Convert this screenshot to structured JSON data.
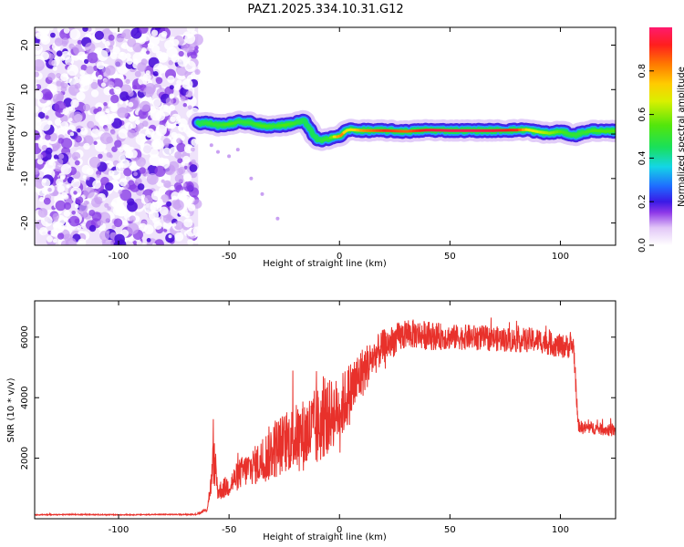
{
  "title": "PAZ1.2025.334.10.31.G12",
  "chart_data": [
    {
      "type": "heatmap",
      "name": "spectrogram",
      "xlabel": "Height of straight line (km)",
      "ylabel": "Frequency (Hz)",
      "xlim": [
        -138,
        125
      ],
      "ylim": [
        -25,
        24
      ],
      "x_ticks": [
        -100,
        -50,
        0,
        50,
        100
      ],
      "y_ticks": [
        -20,
        -10,
        0,
        10,
        20
      ],
      "noise_region_x": [
        -138,
        -64
      ],
      "ridge": {
        "x": [
          -64,
          -60,
          -55,
          -50,
          -45,
          -40,
          -35,
          -30,
          -25,
          -20,
          -16,
          -14,
          -12,
          -10,
          -8,
          -5,
          -3,
          0,
          3,
          5,
          10,
          20,
          30,
          40,
          50,
          60,
          70,
          80,
          85,
          90,
          95,
          100,
          103,
          106,
          110,
          115,
          120,
          125
        ],
        "y": [
          2.5,
          2.5,
          2.0,
          2.2,
          2.8,
          2.5,
          1.8,
          1.8,
          2.0,
          2.5,
          3.0,
          1.5,
          0.0,
          -1.2,
          -1.5,
          -1.0,
          -0.6,
          -0.6,
          0.8,
          1.0,
          0.8,
          0.8,
          0.6,
          0.9,
          0.8,
          0.8,
          0.8,
          0.9,
          1.0,
          0.5,
          0.2,
          0.6,
          0.2,
          -0.3,
          0.3,
          0.8,
          0.6,
          0.7
        ],
        "amp": [
          0.45,
          0.5,
          0.5,
          0.55,
          0.5,
          0.5,
          0.55,
          0.5,
          0.55,
          0.5,
          0.45,
          0.45,
          0.45,
          0.45,
          0.5,
          0.5,
          0.65,
          0.85,
          0.65,
          0.7,
          0.8,
          0.9,
          0.85,
          0.95,
          0.97,
          0.97,
          0.95,
          0.9,
          0.7,
          0.65,
          0.6,
          0.55,
          0.5,
          0.5,
          0.5,
          0.55,
          0.55,
          0.55
        ]
      },
      "colorbar": {
        "label": "Normalized spectral amplitude",
        "range": [
          0,
          1
        ],
        "ticks": [
          "0.0",
          "0.2",
          "0.4",
          "0.6",
          "0.8"
        ],
        "tick_values": [
          0.0,
          0.2,
          0.4,
          0.6,
          0.8
        ]
      }
    },
    {
      "type": "line",
      "name": "snr",
      "xlabel": "Height of straight line (km)",
      "ylabel": "SNR (10 * v/v)",
      "xlim": [
        -138,
        125
      ],
      "ylim": [
        0,
        7200
      ],
      "x_ticks": [
        -100,
        -50,
        0,
        50,
        100
      ],
      "y_ticks": [
        2000,
        4000,
        6000
      ],
      "series": [
        {
          "name": "SNR",
          "color": "#e8312b",
          "x": [
            -138,
            -120,
            -100,
            -80,
            -65,
            -60,
            -58,
            -57,
            -55,
            -50,
            -45,
            -40,
            -35,
            -30,
            -25,
            -20,
            -15,
            -10,
            -5,
            0,
            5,
            10,
            15,
            20,
            25,
            30,
            35,
            40,
            50,
            60,
            70,
            80,
            90,
            100,
            106,
            108,
            110,
            115,
            120,
            125
          ],
          "y": [
            130,
            140,
            130,
            140,
            140,
            300,
            1200,
            2000,
            900,
            1100,
            1500,
            1700,
            1900,
            2300,
            2500,
            2700,
            2800,
            3000,
            3400,
            3600,
            4200,
            4800,
            5300,
            5700,
            5900,
            6100,
            6100,
            6050,
            6000,
            6000,
            5950,
            5900,
            5900,
            5700,
            5700,
            3100,
            3000,
            3000,
            2950,
            2900
          ],
          "noise_amp": [
            0.12,
            0.12,
            0.12,
            0.12,
            0.12,
            0.25,
            0.35,
            0.45,
            0.35,
            0.35,
            0.35,
            0.35,
            0.4,
            0.45,
            0.4,
            0.4,
            0.45,
            0.45,
            0.35,
            0.3,
            0.25,
            0.18,
            0.12,
            0.1,
            0.09,
            0.08,
            0.08,
            0.08,
            0.07,
            0.07,
            0.07,
            0.07,
            0.07,
            0.07,
            0.07,
            0.07,
            0.07,
            0.07,
            0.07,
            0.07
          ]
        }
      ]
    }
  ]
}
